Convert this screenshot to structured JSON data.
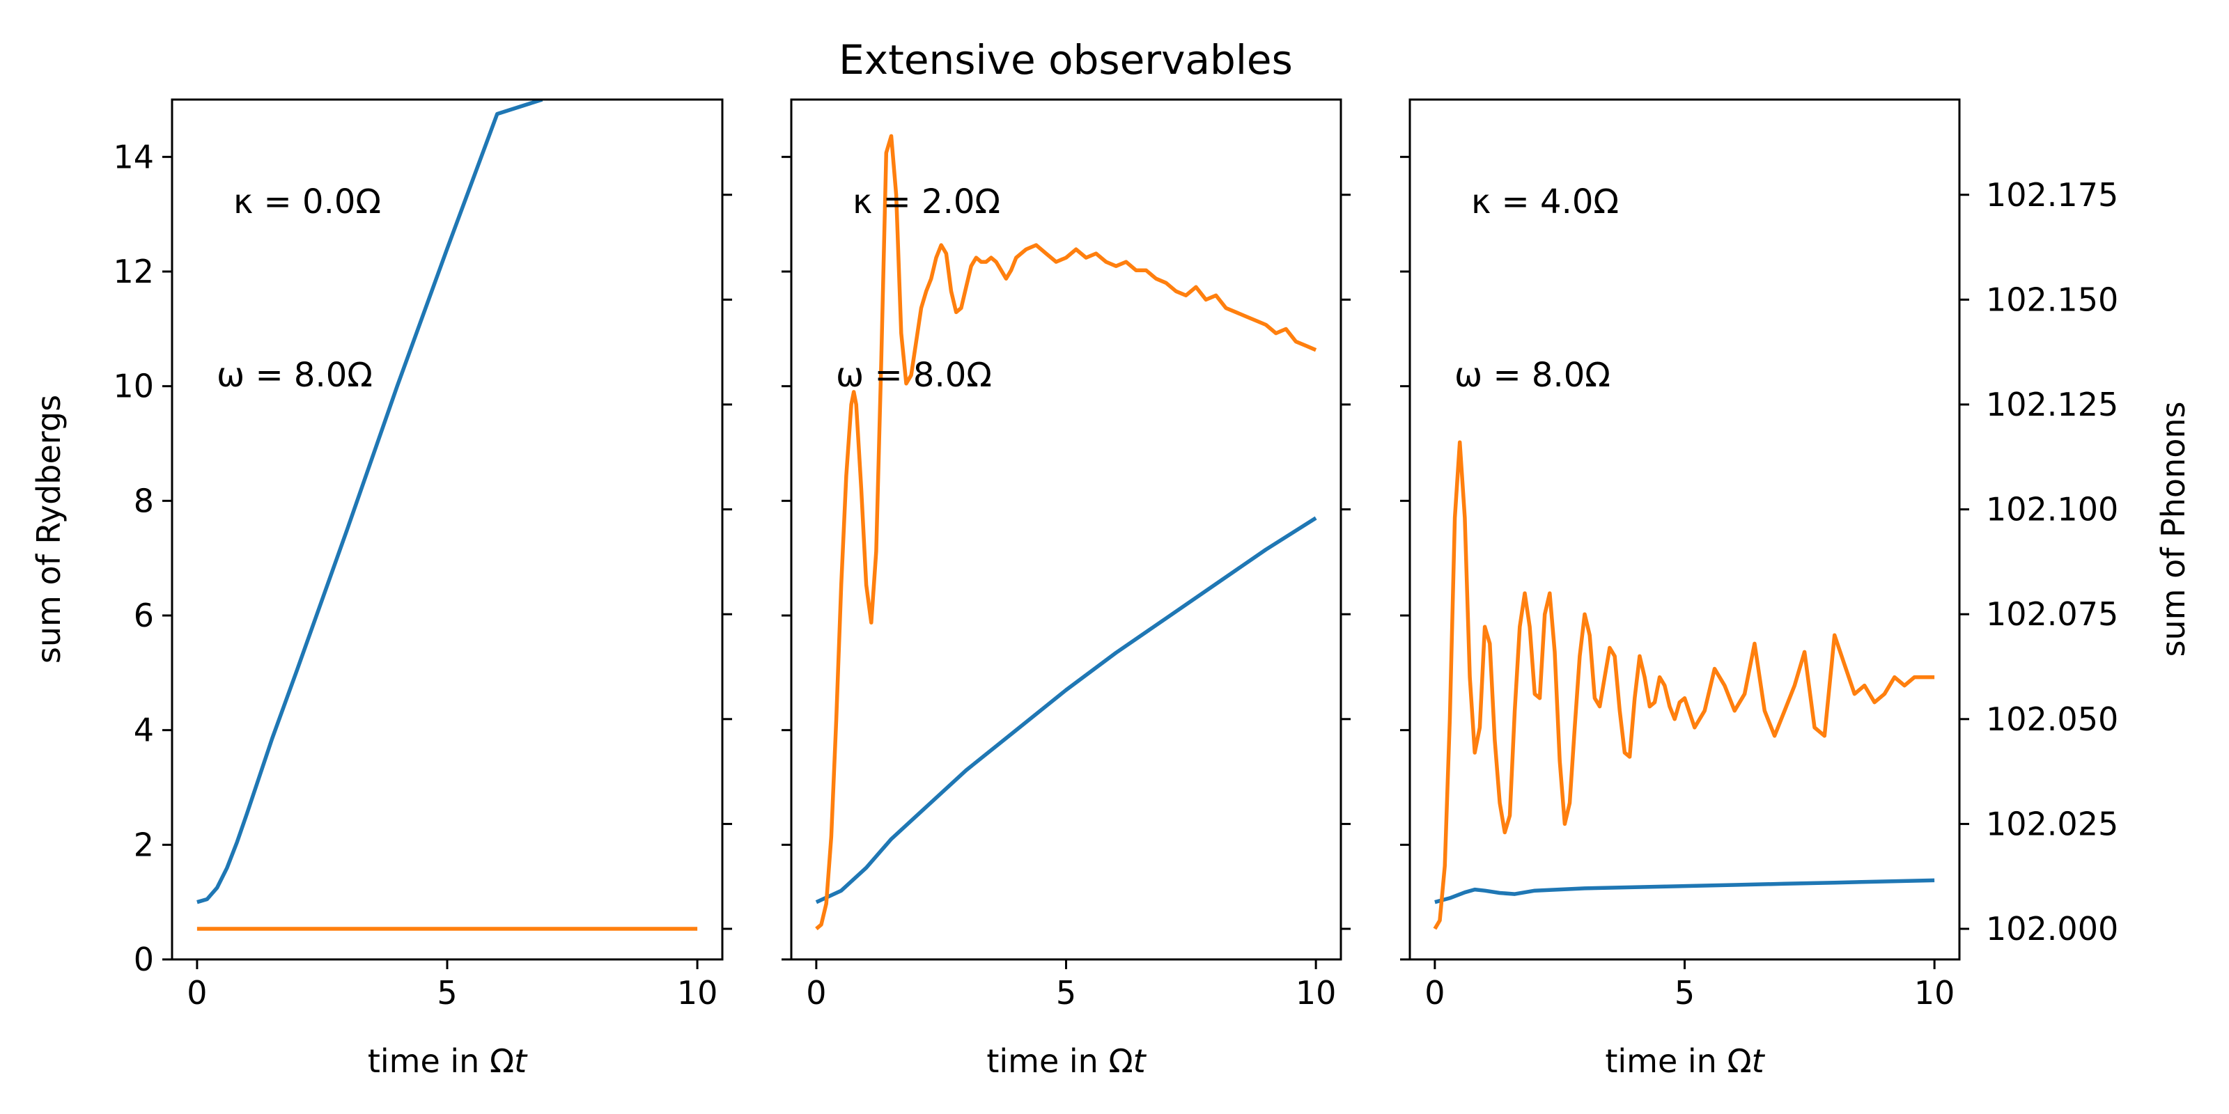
{
  "chart_data": {
    "type": "line",
    "title": "Extensive observables",
    "shared_xlabel": "time in Ω",
    "shared_xlabel_italic": "t",
    "left_ylabel": "sum of Rydbergs",
    "right_ylabel": "sum of Phonons",
    "colors": {
      "rydbergs": "#1f77b4",
      "phonons": "#ff7f0e"
    },
    "xlim": [
      -0.5,
      10.5
    ],
    "xticks": [
      0,
      5,
      10
    ],
    "left_ylim": [
      0,
      15
    ],
    "left_yticks": [
      0,
      2,
      4,
      6,
      8,
      10,
      12,
      14
    ],
    "right_ylim": [
      101.9927,
      102.1977
    ],
    "right_yticks": [
      102.0,
      102.025,
      102.05,
      102.075,
      102.1,
      102.125,
      102.15,
      102.175
    ],
    "right_yticklabels": [
      "102.000",
      "102.025",
      "102.050",
      "102.075",
      "102.100",
      "102.125",
      "102.150",
      "102.175"
    ],
    "panels": [
      {
        "kappa_label": "κ = 0.0Ω",
        "omega_label": "ω = 8.0Ω",
        "rydbergs": {
          "x": [
            0,
            0.2,
            0.4,
            0.6,
            0.8,
            1.0,
            1.5,
            2.0,
            3.0,
            4.0,
            5.0,
            6.0,
            6.9
          ],
          "y": [
            1.0,
            1.05,
            1.25,
            1.6,
            2.05,
            2.55,
            3.85,
            5.05,
            7.5,
            10.0,
            12.4,
            14.75,
            15.0
          ]
        },
        "phonons": {
          "x": [
            0,
            10
          ],
          "y": [
            102.0,
            102.0
          ]
        }
      },
      {
        "kappa_label": "κ = 2.0Ω",
        "omega_label": "ω = 8.0Ω",
        "rydbergs": {
          "x": [
            0,
            0.5,
            1.0,
            1.5,
            2.0,
            3.0,
            4.0,
            5.0,
            6.0,
            7.0,
            8.0,
            9.0,
            10.0
          ],
          "y": [
            1.0,
            1.2,
            1.6,
            2.1,
            2.5,
            3.3,
            4.0,
            4.7,
            5.35,
            5.95,
            6.55,
            7.15,
            7.7
          ]
        },
        "phonons": {
          "x": [
            0,
            0.1,
            0.2,
            0.3,
            0.4,
            0.5,
            0.6,
            0.7,
            0.75,
            0.8,
            0.9,
            1.0,
            1.1,
            1.2,
            1.3,
            1.4,
            1.5,
            1.6,
            1.7,
            1.8,
            1.9,
            2.0,
            2.1,
            2.2,
            2.3,
            2.4,
            2.5,
            2.6,
            2.7,
            2.8,
            2.9,
            3.0,
            3.1,
            3.2,
            3.3,
            3.4,
            3.5,
            3.6,
            3.7,
            3.8,
            3.9,
            4.0,
            4.2,
            4.4,
            4.6,
            4.8,
            5.0,
            5.2,
            5.4,
            5.6,
            5.8,
            6.0,
            6.2,
            6.4,
            6.6,
            6.8,
            7.0,
            7.2,
            7.4,
            7.6,
            7.8,
            8.0,
            8.2,
            8.4,
            8.6,
            8.8,
            9.0,
            9.2,
            9.4,
            9.6,
            9.8,
            10.0
          ],
          "y": [
            102.0,
            102.001,
            102.006,
            102.022,
            102.05,
            102.082,
            102.108,
            102.125,
            102.128,
            102.125,
            102.105,
            102.082,
            102.073,
            102.09,
            102.135,
            102.185,
            102.189,
            102.175,
            102.142,
            102.13,
            102.132,
            102.14,
            102.148,
            102.152,
            102.155,
            102.16,
            102.163,
            102.161,
            102.152,
            102.147,
            102.148,
            102.153,
            102.158,
            102.16,
            102.159,
            102.159,
            102.16,
            102.159,
            102.157,
            102.155,
            102.157,
            102.16,
            102.162,
            102.163,
            102.161,
            102.159,
            102.16,
            102.162,
            102.16,
            102.161,
            102.159,
            102.158,
            102.159,
            102.157,
            102.157,
            102.155,
            102.154,
            102.152,
            102.151,
            102.153,
            102.15,
            102.151,
            102.148,
            102.147,
            102.146,
            102.145,
            102.144,
            102.142,
            102.143,
            102.14,
            102.139,
            102.138
          ]
        }
      },
      {
        "kappa_label": "κ = 4.0Ω",
        "omega_label": "ω = 8.0Ω",
        "rydbergs": {
          "x": [
            0,
            0.3,
            0.6,
            0.8,
            1.0,
            1.3,
            1.6,
            2.0,
            3.0,
            4.0,
            5.0,
            6.0,
            7.0,
            8.0,
            9.0,
            10.0
          ],
          "y": [
            1.0,
            1.07,
            1.17,
            1.22,
            1.2,
            1.16,
            1.14,
            1.2,
            1.24,
            1.26,
            1.28,
            1.3,
            1.32,
            1.34,
            1.36,
            1.38
          ]
        },
        "phonons": {
          "x": [
            0,
            0.1,
            0.2,
            0.3,
            0.4,
            0.5,
            0.6,
            0.7,
            0.8,
            0.9,
            1.0,
            1.1,
            1.2,
            1.3,
            1.4,
            1.5,
            1.6,
            1.7,
            1.8,
            1.9,
            2.0,
            2.1,
            2.2,
            2.3,
            2.4,
            2.5,
            2.6,
            2.7,
            2.8,
            2.9,
            3.0,
            3.1,
            3.2,
            3.3,
            3.4,
            3.5,
            3.6,
            3.7,
            3.8,
            3.9,
            4.0,
            4.1,
            4.2,
            4.3,
            4.4,
            4.5,
            4.6,
            4.7,
            4.8,
            4.9,
            5.0,
            5.2,
            5.4,
            5.6,
            5.8,
            6.0,
            6.2,
            6.4,
            6.6,
            6.8,
            7.0,
            7.2,
            7.4,
            7.6,
            7.8,
            8.0,
            8.2,
            8.4,
            8.6,
            8.8,
            9.0,
            9.2,
            9.4,
            9.6,
            9.8,
            10.0
          ],
          "y": [
            102.0,
            102.002,
            102.015,
            102.05,
            102.098,
            102.116,
            102.098,
            102.06,
            102.042,
            102.048,
            102.072,
            102.068,
            102.045,
            102.03,
            102.023,
            102.027,
            102.052,
            102.072,
            102.08,
            102.072,
            102.056,
            102.055,
            102.075,
            102.08,
            102.066,
            102.04,
            102.025,
            102.03,
            102.048,
            102.065,
            102.075,
            102.07,
            102.055,
            102.053,
            102.06,
            102.067,
            102.065,
            102.052,
            102.042,
            102.041,
            102.055,
            102.065,
            102.06,
            102.053,
            102.054,
            102.06,
            102.058,
            102.053,
            102.05,
            102.054,
            102.055,
            102.048,
            102.052,
            102.062,
            102.058,
            102.052,
            102.056,
            102.068,
            102.052,
            102.046,
            102.052,
            102.058,
            102.066,
            102.048,
            102.046,
            102.07,
            102.063,
            102.056,
            102.058,
            102.054,
            102.056,
            102.06,
            102.058,
            102.06,
            102.06,
            102.06
          ]
        }
      }
    ]
  }
}
